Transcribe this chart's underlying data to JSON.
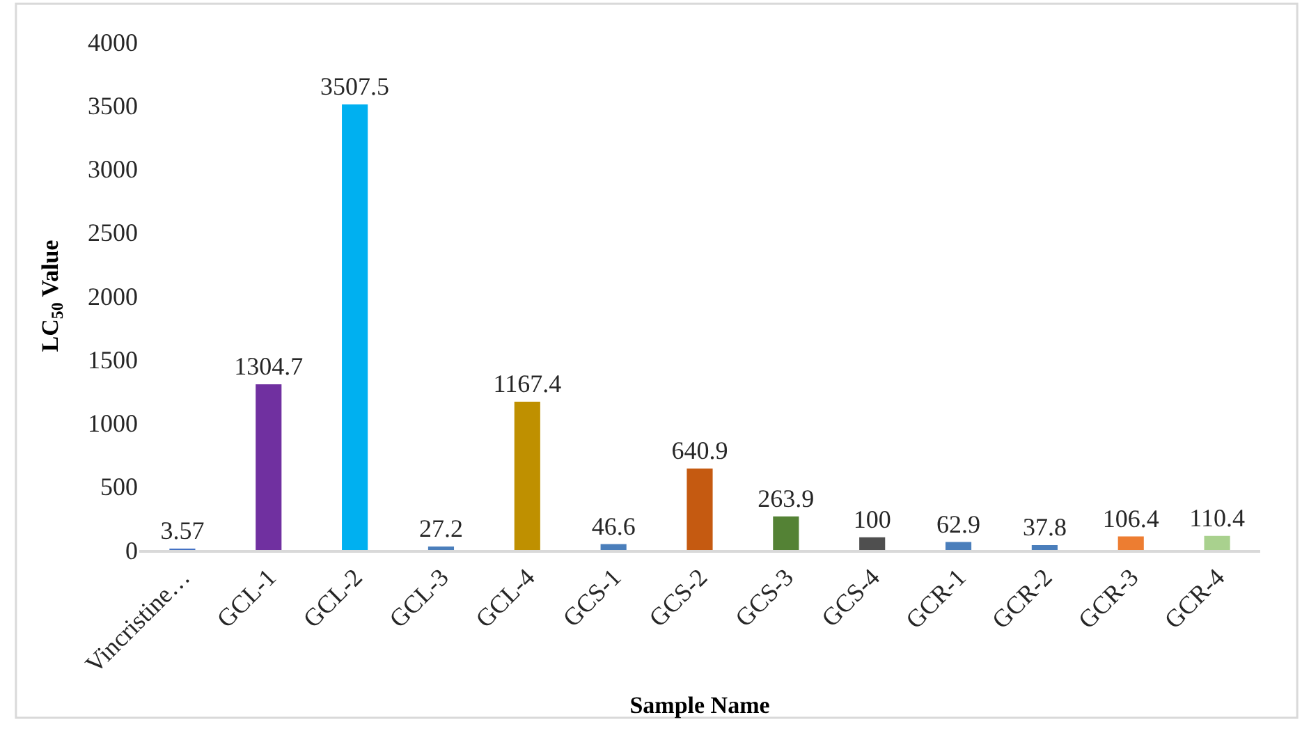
{
  "chart_data": {
    "type": "bar",
    "xlabel": "Sample Name",
    "ylabel": "LC$_{50}$ Value",
    "categories": [
      "Vincristine…",
      "GCL-1",
      "GCL-2",
      "GCL-3",
      "GCL-4",
      "GCS-1",
      "GCS-2",
      "GCS-3",
      "GCS-4",
      "GCR-1",
      "GCR-2",
      "GCR-3",
      "GCR-4"
    ],
    "values": [
      3.57,
      1304.7,
      3507.5,
      27.2,
      1167.4,
      46.6,
      640.9,
      263.9,
      100,
      62.9,
      37.8,
      106.4,
      110.4
    ],
    "colors": [
      "#4472c4",
      "#7030a0",
      "#00b0f0",
      "#4a7ebb",
      "#bf9000",
      "#4a7ebb",
      "#c55a11",
      "#548235",
      "#4f4f4f",
      "#4a7ebb",
      "#4a7ebb",
      "#ed7d31",
      "#a9d18e"
    ],
    "ylim": [
      0,
      4000
    ],
    "yticks": [
      0,
      500,
      1000,
      1500,
      2000,
      2500,
      3000,
      3500,
      4000
    ],
    "data_labels": true,
    "grid": false
  }
}
